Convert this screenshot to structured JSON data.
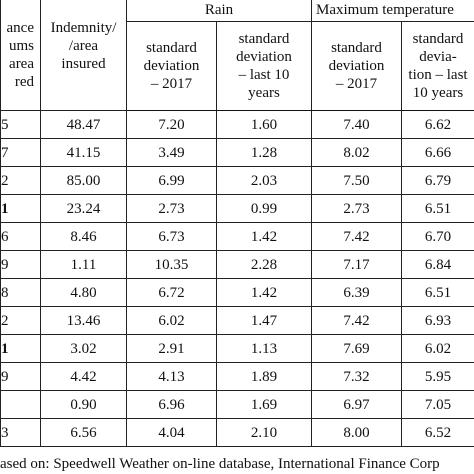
{
  "header": {
    "stub": [
      "ance",
      "ums",
      "area",
      "red"
    ],
    "indemnity": [
      "Indemnity/",
      "/area",
      "insured"
    ],
    "rain": "Rain",
    "max_temp": "Maximum temperature",
    "subheaders": [
      [
        "standard",
        "deviation",
        "– 2017"
      ],
      [
        "standard",
        "deviation",
        "– last 10",
        "years"
      ],
      [
        "standard",
        "deviation",
        "– 2017"
      ],
      [
        "standard",
        "devia-",
        "tion – last",
        "10 years"
      ]
    ]
  },
  "table": {
    "rows": [
      [
        "5",
        "48.47",
        "7.20",
        "1.60",
        "7.40",
        "6.62"
      ],
      [
        "7",
        "41.15",
        "3.49",
        "1.28",
        "8.02",
        "6.66"
      ],
      [
        "2",
        "85.00",
        "6.99",
        "2.03",
        "7.50",
        "6.79"
      ],
      [
        "1",
        "23.24",
        "2.73",
        "0.99",
        "2.73",
        "6.51"
      ],
      [
        "6",
        "8.46",
        "6.73",
        "1.42",
        "7.42",
        "6.70"
      ],
      [
        "9",
        "1.11",
        "10.35",
        "2.28",
        "7.17",
        "6.84"
      ],
      [
        "8",
        "4.80",
        "6.72",
        "1.42",
        "6.39",
        "6.51"
      ],
      [
        "2",
        "13.46",
        "6.02",
        "1.47",
        "7.42",
        "6.93"
      ],
      [
        "1",
        "3.02",
        "2.91",
        "1.13",
        "7.69",
        "6.02"
      ],
      [
        "9",
        "4.42",
        "4.13",
        "1.89",
        "7.32",
        "5.95"
      ],
      [
        null,
        "0.90",
        "6.96",
        "1.69",
        "6.97",
        "7.05"
      ],
      [
        "3",
        "6.56",
        "4.04",
        "2.10",
        "8.00",
        "6.52"
      ]
    ]
  },
  "footer": "ased on: Speedwell Weather  on-line database, International Finance Corp"
}
